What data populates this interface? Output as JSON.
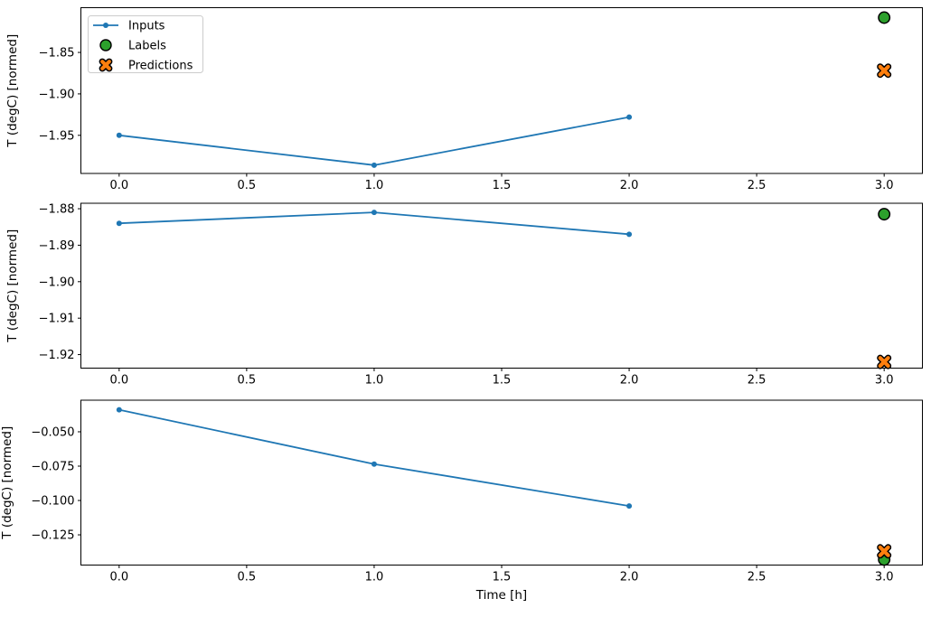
{
  "figure": {
    "background": "#ffffff",
    "xlabel": "Time [h]",
    "ylabel": "T (degC) [normed]"
  },
  "colors": {
    "inputs": "#1f77b4",
    "labels": "#2ca02c",
    "predictions": "#ff7f0e",
    "marker_edge": "#000000",
    "axis": "#000000",
    "text": "#000000",
    "legend_border": "#cccccc",
    "legend_bg": "#ffffff"
  },
  "legend": {
    "position": "upper-left-subplot-1",
    "entries": [
      {
        "key": "inputs",
        "label": "Inputs",
        "marker": "line-dot"
      },
      {
        "key": "labels",
        "label": "Labels",
        "marker": "circle"
      },
      {
        "key": "predictions",
        "label": "Predictions",
        "marker": "x-cross"
      }
    ]
  },
  "chart_data": [
    {
      "type": "line",
      "title": "",
      "xlabel": "",
      "ylabel": "T (degC) [normed]",
      "xlim": [
        -0.15,
        3.15
      ],
      "ylim": [
        -1.996,
        -1.796
      ],
      "grid": false,
      "legend": true,
      "xticks": [
        {
          "v": 0.0,
          "label": "0.0"
        },
        {
          "v": 0.5,
          "label": "0.5"
        },
        {
          "v": 1.0,
          "label": "1.0"
        },
        {
          "v": 1.5,
          "label": "1.5"
        },
        {
          "v": 2.0,
          "label": "2.0"
        },
        {
          "v": 2.5,
          "label": "2.5"
        },
        {
          "v": 3.0,
          "label": "3.0"
        }
      ],
      "yticks": [
        {
          "v": -1.85,
          "label": "−1.85"
        },
        {
          "v": -1.9,
          "label": "−1.90"
        },
        {
          "v": -1.95,
          "label": "−1.95"
        }
      ],
      "series": [
        {
          "name": "Inputs",
          "style": "line+marker",
          "x": [
            0,
            1,
            2
          ],
          "y": [
            -1.95,
            -1.986,
            -1.928
          ]
        },
        {
          "name": "Labels",
          "style": "circle",
          "x": [
            3
          ],
          "y": [
            -1.808
          ]
        },
        {
          "name": "Predictions",
          "style": "x",
          "x": [
            3
          ],
          "y": [
            -1.872
          ]
        }
      ]
    },
    {
      "type": "line",
      "title": "",
      "xlabel": "",
      "ylabel": "T (degC) [normed]",
      "xlim": [
        -0.15,
        3.15
      ],
      "ylim": [
        -1.9237,
        -1.8785
      ],
      "grid": false,
      "legend": false,
      "xticks": [
        {
          "v": 0.0,
          "label": "0.0"
        },
        {
          "v": 0.5,
          "label": "0.5"
        },
        {
          "v": 1.0,
          "label": "1.0"
        },
        {
          "v": 1.5,
          "label": "1.5"
        },
        {
          "v": 2.0,
          "label": "2.0"
        },
        {
          "v": 2.5,
          "label": "2.5"
        },
        {
          "v": 3.0,
          "label": "3.0"
        }
      ],
      "yticks": [
        {
          "v": -1.88,
          "label": "−1.88"
        },
        {
          "v": -1.89,
          "label": "−1.89"
        },
        {
          "v": -1.9,
          "label": "−1.90"
        },
        {
          "v": -1.91,
          "label": "−1.91"
        },
        {
          "v": -1.92,
          "label": "−1.92"
        }
      ],
      "series": [
        {
          "name": "Inputs",
          "style": "line+marker",
          "x": [
            0,
            1,
            2
          ],
          "y": [
            -1.884,
            -1.881,
            -1.887
          ]
        },
        {
          "name": "Labels",
          "style": "circle",
          "x": [
            3
          ],
          "y": [
            -1.8815
          ]
        },
        {
          "name": "Predictions",
          "style": "x",
          "x": [
            3
          ],
          "y": [
            -1.922
          ]
        }
      ]
    },
    {
      "type": "line",
      "title": "",
      "xlabel": "Time [h]",
      "ylabel": "T (degC) [normed]",
      "xlim": [
        -0.15,
        3.15
      ],
      "ylim": [
        -0.147,
        -0.027
      ],
      "grid": false,
      "legend": false,
      "xticks": [
        {
          "v": 0.0,
          "label": "0.0"
        },
        {
          "v": 0.5,
          "label": "0.5"
        },
        {
          "v": 1.0,
          "label": "1.0"
        },
        {
          "v": 1.5,
          "label": "1.5"
        },
        {
          "v": 2.0,
          "label": "2.0"
        },
        {
          "v": 2.5,
          "label": "2.5"
        },
        {
          "v": 3.0,
          "label": "3.0"
        }
      ],
      "yticks": [
        {
          "v": -0.05,
          "label": "−0.050"
        },
        {
          "v": -0.075,
          "label": "−0.075"
        },
        {
          "v": -0.1,
          "label": "−0.100"
        },
        {
          "v": -0.125,
          "label": "−0.125"
        }
      ],
      "series": [
        {
          "name": "Inputs",
          "style": "line+marker",
          "x": [
            0,
            1,
            2
          ],
          "y": [
            -0.034,
            -0.0735,
            -0.104
          ]
        },
        {
          "name": "Labels",
          "style": "circle",
          "x": [
            3
          ],
          "y": [
            -0.143
          ]
        },
        {
          "name": "Predictions",
          "style": "x",
          "x": [
            3
          ],
          "y": [
            -0.137
          ]
        }
      ]
    }
  ]
}
